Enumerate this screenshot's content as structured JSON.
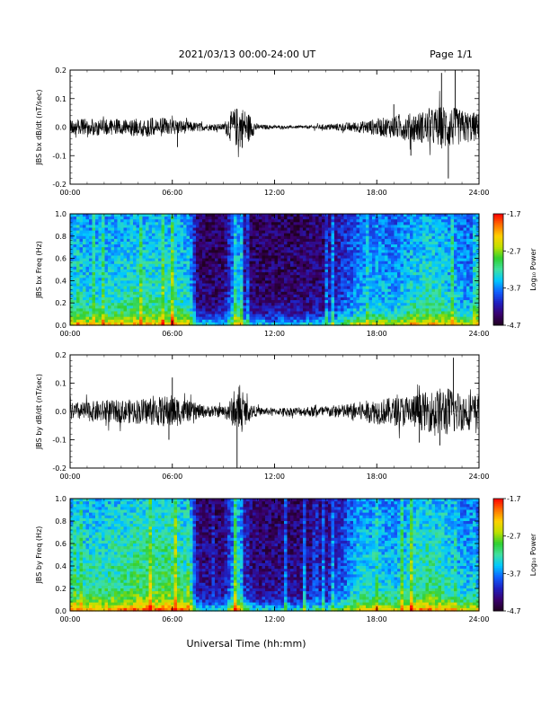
{
  "header": {
    "title": "2021/03/13  00:00-24:00 UT",
    "page": "Page 1/1"
  },
  "x_axis": {
    "title": "Universal Time (hh:mm)",
    "ticks": [
      "00:00",
      "06:00",
      "12:00",
      "18:00",
      "24:00"
    ],
    "range_hours": [
      0,
      24
    ]
  },
  "colors": {
    "trace": "#000000",
    "colormap": [
      "#200020",
      "#3a006e",
      "#2020c0",
      "#1060ff",
      "#00c8ff",
      "#40e0a0",
      "#30d030",
      "#c0e000",
      "#ffd000",
      "#ff7000",
      "#ff0000"
    ]
  },
  "chart_data": [
    {
      "type": "line",
      "ylabel": "JBS bx dB/dt (nT/sec)",
      "ylim": [
        -0.2,
        0.2
      ],
      "yticks": [
        "0.2",
        "0.1",
        "0.0",
        "-0.1",
        "-0.2"
      ],
      "envelope": {
        "x": [
          0,
          1,
          2,
          3,
          4,
          5,
          6,
          7,
          8,
          9,
          9.5,
          10,
          10.5,
          11,
          12,
          13,
          14,
          15,
          16,
          17,
          18,
          19,
          20,
          21,
          22,
          23,
          24
        ],
        "amplitude": [
          0.025,
          0.03,
          0.028,
          0.03,
          0.032,
          0.035,
          0.03,
          0.02,
          0.012,
          0.012,
          0.06,
          0.08,
          0.05,
          0.01,
          0.006,
          0.005,
          0.006,
          0.01,
          0.015,
          0.02,
          0.03,
          0.04,
          0.05,
          0.06,
          0.08,
          0.06,
          0.05
        ]
      },
      "spikes": [
        {
          "x": 21.8,
          "y": 0.19
        },
        {
          "x": 22.2,
          "y": -0.18
        },
        {
          "x": 22.6,
          "y": 0.2
        },
        {
          "x": 20.0,
          "y": -0.1
        },
        {
          "x": 19.0,
          "y": 0.08
        },
        {
          "x": 6.3,
          "y": -0.07
        }
      ]
    },
    {
      "type": "heatmap",
      "ylabel": "JBS bx Freq (Hz)",
      "ylim": [
        0.0,
        1.0
      ],
      "yticks": [
        "1.0",
        "0.8",
        "0.6",
        "0.4",
        "0.2",
        "0.0"
      ],
      "colorbar": {
        "label": "Log₁₀ Power",
        "ticks": [
          "-1.7",
          "-2.7",
          "-3.7",
          "-4.7"
        ],
        "range": [
          -4.7,
          -1.7
        ]
      },
      "activity": {
        "x": [
          0,
          2,
          4,
          6,
          7,
          7.5,
          8,
          9,
          9.8,
          10,
          10.3,
          11,
          13,
          15,
          16,
          17,
          18,
          19,
          20,
          21,
          22,
          23,
          24
        ],
        "level": [
          0.55,
          0.55,
          0.6,
          0.6,
          0.55,
          0.15,
          0.12,
          0.12,
          0.55,
          0.5,
          0.15,
          0.12,
          0.12,
          0.15,
          0.3,
          0.45,
          0.5,
          0.45,
          0.55,
          0.6,
          0.55,
          0.45,
          0.45
        ]
      }
    },
    {
      "type": "line",
      "ylabel": "JBS by dB/dt (nT/sec)",
      "ylim": [
        -0.2,
        0.2
      ],
      "yticks": [
        "0.2",
        "0.1",
        "0.0",
        "-0.1",
        "-0.2"
      ],
      "envelope": {
        "x": [
          0,
          1,
          2,
          3,
          4,
          5,
          6,
          7,
          8,
          9,
          9.5,
          10,
          10.5,
          11,
          12,
          13,
          14,
          15,
          16,
          17,
          18,
          19,
          20,
          21,
          22,
          23,
          24
        ],
        "amplitude": [
          0.03,
          0.035,
          0.04,
          0.04,
          0.045,
          0.05,
          0.06,
          0.035,
          0.02,
          0.02,
          0.05,
          0.07,
          0.03,
          0.015,
          0.012,
          0.015,
          0.018,
          0.02,
          0.025,
          0.035,
          0.045,
          0.05,
          0.06,
          0.07,
          0.09,
          0.07,
          0.06
        ]
      },
      "spikes": [
        {
          "x": 9.8,
          "y": -0.2
        },
        {
          "x": 6.0,
          "y": 0.12
        },
        {
          "x": 21.7,
          "y": -0.12
        },
        {
          "x": 22.5,
          "y": 0.19
        },
        {
          "x": 20.5,
          "y": -0.11
        },
        {
          "x": 5.8,
          "y": -0.1
        }
      ]
    },
    {
      "type": "heatmap",
      "ylabel": "JBS by Freq (Hz)",
      "ylim": [
        0.0,
        1.0
      ],
      "yticks": [
        "1.0",
        "0.8",
        "0.6",
        "0.4",
        "0.2",
        "0.0"
      ],
      "colorbar": {
        "label": "Log₁₀ Power",
        "ticks": [
          "-1.7",
          "-2.7",
          "-3.7",
          "-4.7"
        ],
        "range": [
          -4.7,
          -1.7
        ]
      },
      "activity": {
        "x": [
          0,
          2,
          4,
          6,
          7,
          7.5,
          8,
          9,
          9.8,
          10,
          10.3,
          11,
          13,
          15,
          16,
          17,
          18,
          19,
          20,
          21,
          22,
          23,
          24
        ],
        "level": [
          0.6,
          0.62,
          0.68,
          0.7,
          0.6,
          0.18,
          0.15,
          0.15,
          0.6,
          0.55,
          0.2,
          0.15,
          0.15,
          0.2,
          0.35,
          0.55,
          0.55,
          0.5,
          0.6,
          0.65,
          0.6,
          0.5,
          0.5
        ]
      }
    }
  ]
}
